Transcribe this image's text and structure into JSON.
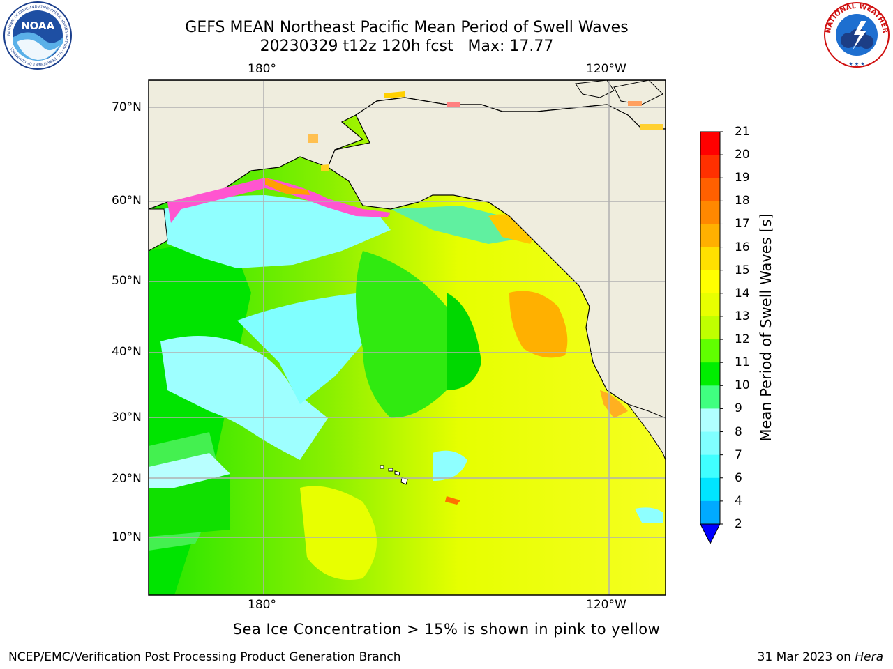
{
  "header": {
    "title": "GEFS MEAN Northeast Pacific Mean Period of Swell Waves",
    "subtitle": "20230329 t12z 120h fcst   Max: 17.77"
  },
  "logos": {
    "left": "noaa-logo",
    "left_text": "NOAA",
    "left_ring_text": "NATIONAL OCEANIC AND ATMOSPHERIC ADMINISTRATION · U.S. DEPARTMENT OF COMMERCE",
    "right": "nws-logo",
    "right_ring_text": "NATIONAL WEATHER SERVICE"
  },
  "map": {
    "region": "Northeast Pacific",
    "lon_labels_top": [
      "180°",
      "120°W"
    ],
    "lon_labels_bottom": [
      "180°",
      "120°W"
    ],
    "lat_labels": [
      "70°N",
      "60°N",
      "50°N",
      "40°N",
      "30°N",
      "20°N",
      "10°N"
    ],
    "gridlines": true,
    "land_color": "#efedde",
    "sea_ice_colors": [
      "#ff00ff",
      "#ff69b4",
      "#ffa500",
      "#ffd700"
    ]
  },
  "colorbar": {
    "label": "Mean Period of Swell Waves [s]",
    "ticks": [
      "21",
      "20",
      "19",
      "18",
      "17",
      "16",
      "15",
      "14",
      "13",
      "12",
      "11",
      "10",
      "9",
      "8",
      "7",
      "6",
      "4",
      "2"
    ],
    "colors_low_to_high": [
      "#0050ff",
      "#00aaff",
      "#00e5ff",
      "#40ffff",
      "#80ffff",
      "#b0ffff",
      "#40ff80",
      "#00ee00",
      "#60ff00",
      "#c0ff00",
      "#e8ff00",
      "#ffff00",
      "#ffe000",
      "#ffb000",
      "#ff8800",
      "#ff6000",
      "#ff3000",
      "#ff0000"
    ],
    "extend": "min",
    "extend_color": "#0000ff"
  },
  "note": "Sea Ice Concentration > 15% is shown in pink to yellow",
  "footer": {
    "left": "NCEP/EMC/Verification Post Processing Product Generation Branch",
    "right_date": "31 Mar 2023 on ",
    "right_host": "Hera"
  }
}
